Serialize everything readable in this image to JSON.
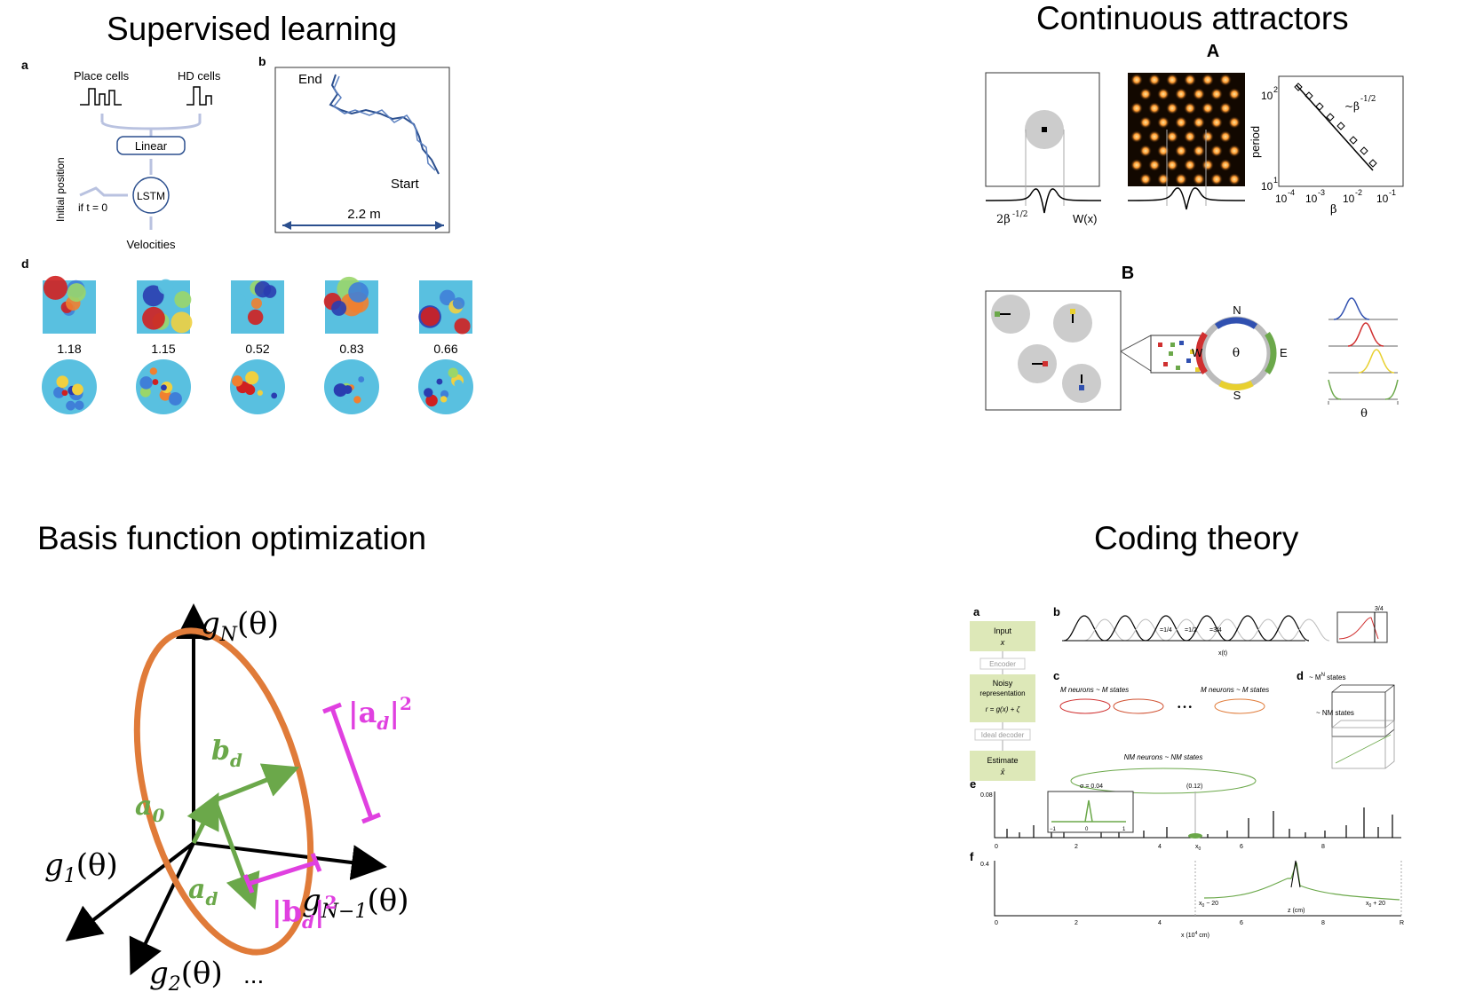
{
  "titles": {
    "q1": "Supervised learning",
    "q2": "Continuous attractors",
    "q3": "Basis function optimization",
    "q4": "Coding theory"
  },
  "supervised": {
    "panel_a": "a",
    "panel_b": "b",
    "panel_d": "d",
    "place_cells": "Place cells",
    "hd_cells": "HD cells",
    "linear": "Linear",
    "lstm": "LSTM",
    "initial_position": "Initial position",
    "if_t0": "if t = 0",
    "velocities": "Velocities",
    "end": "End",
    "start": "Start",
    "distance": "2.2 m",
    "scores": [
      "1.18",
      "1.15",
      "0.52",
      "0.83",
      "0.66"
    ]
  },
  "attractors": {
    "label_A": "A",
    "label_B": "B",
    "width_label": "2β",
    "width_exp": "-1/2",
    "wx": "W(x)",
    "y_label": "period",
    "x_label": "β",
    "slope_label": "~β",
    "slope_exp": "-1/2",
    "y_ticks": [
      "10",
      "10"
    ],
    "y_tick_exps": [
      "2",
      "1"
    ],
    "x_ticks": [
      "10",
      "10",
      "10",
      "10"
    ],
    "x_tick_exps": [
      "-4",
      "-3",
      "-2",
      "-1"
    ],
    "compass": {
      "n": "N",
      "e": "E",
      "s": "S",
      "w": "W"
    },
    "theta": "θ"
  },
  "basis": {
    "g_n": "g",
    "g_n_sub": "N",
    "g_1": "g",
    "g_1_sub": "1",
    "g_2": "g",
    "g_2_sub": "2",
    "g_nm1": "g",
    "g_nm1_sub": "N−1",
    "theta_arg": "(θ)",
    "ellipsis": "...",
    "a0": "a",
    "a0_sub": "0",
    "ad": "a",
    "ad_sub": "d",
    "bd": "b",
    "bd_sub": "d",
    "ad_norm": "|a",
    "ad_norm_sub": "d",
    "bd_norm": "|b",
    "bd_norm_sub": "d",
    "norm_close": "|",
    "sq": "2"
  },
  "coding": {
    "label_a": "a",
    "label_b": "b",
    "label_c": "c",
    "label_d": "d",
    "label_e": "e",
    "label_f": "f",
    "input": "Input",
    "input_sym": "x",
    "encoder": "Encoder",
    "noisy": "Noisy",
    "representation": "representation",
    "noisy_eq": "r = g(x) + ζ",
    "ideal_decoder": "Ideal decoder",
    "estimate": "Estimate",
    "estimate_sym": "x̂",
    "m_neurons_1": "M neurons ~ M states",
    "m_neurons_2": "M neurons ~ M states",
    "nm_neurons": "NM neurons ~ NM states",
    "dots": "• • •",
    "d_top": "~ M",
    "d_top_sup": "N",
    "d_top_tail": "states",
    "d_bottom": "~ NM states",
    "phase_labels": [
      "=1/4",
      "=1/2",
      "=3/4"
    ],
    "b_axis": "x(t)",
    "b_inset_tick": "3/4",
    "e_sigma": "σ",
    "e_sigma_val": "= 0.04",
    "e_ytick": "0.08",
    "e_break": "(0.12)",
    "e_xticks": [
      "0",
      "2",
      "4",
      "6",
      "8"
    ],
    "f_ytick": "0.4",
    "f_xticks": [
      "0",
      "2",
      "4",
      "6",
      "8"
    ],
    "f_xaxis": "x (10",
    "f_xaxis_exp": "4",
    "f_xaxis_tail": " cm)",
    "f_r": "R",
    "f_inset_left": "x",
    "f_inset_left_tail": " − 20",
    "f_inset_right": "x",
    "f_inset_right_tail": " + 20",
    "f_inset_axis": "z (cm)",
    "x0": "x",
    "x0_sub": "0",
    "inset_m1": "−1",
    "inset_0": "0",
    "inset_1": "1"
  },
  "colors": {
    "orange": "#E07B39",
    "green": "#6BA84A",
    "magenta": "#E040E0",
    "navy": "#2B4F8E",
    "olive": "#DDE8B8"
  }
}
